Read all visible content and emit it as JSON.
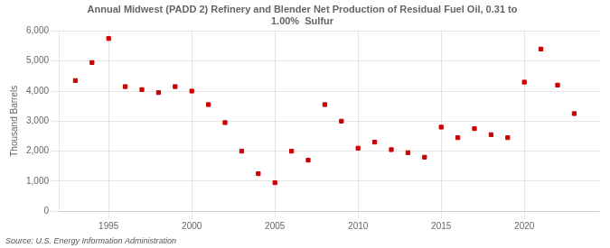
{
  "chart_data": {
    "type": "scatter",
    "title": "Annual Midwest (PADD 2) Refinery and Blender Net Production of Residual Fuel Oil, 0.31 to\n1.00%  Sulfur",
    "ylabel": "Thousand Barrels",
    "source": "Source: U.S. Energy Information Administration",
    "x": [
      1993,
      1994,
      1995,
      1996,
      1997,
      1998,
      1999,
      2000,
      2001,
      2002,
      2003,
      2004,
      2005,
      2006,
      2007,
      2008,
      2009,
      2010,
      2011,
      2012,
      2013,
      2014,
      2015,
      2016,
      2017,
      2018,
      2019,
      2020,
      2021,
      2022,
      2023
    ],
    "values": [
      4350,
      4950,
      5750,
      4150,
      4050,
      3950,
      4150,
      4000,
      3550,
      2950,
      2000,
      1250,
      950,
      2000,
      1700,
      3550,
      3000,
      2100,
      2300,
      2050,
      1950,
      1800,
      2800,
      2450,
      2750,
      2550,
      2450,
      4300,
      5400,
      4200,
      3250
    ],
    "color": "#cc0000",
    "marker": "square",
    "xlim": [
      1992.0,
      2024.5
    ],
    "xticks": [
      1995,
      2000,
      2005,
      2010,
      2015,
      2020
    ],
    "ylim": [
      0,
      6000
    ],
    "yticks": [
      0,
      {
        "value": 1000,
        "label": "1,000"
      },
      {
        "value": 2000,
        "label": "2,000"
      },
      {
        "value": 3000,
        "label": "3,000"
      },
      {
        "value": 4000,
        "label": "4,000"
      },
      {
        "value": 5000,
        "label": "5,000"
      },
      {
        "value": 6000,
        "label": "6,000"
      }
    ],
    "grid": true
  }
}
